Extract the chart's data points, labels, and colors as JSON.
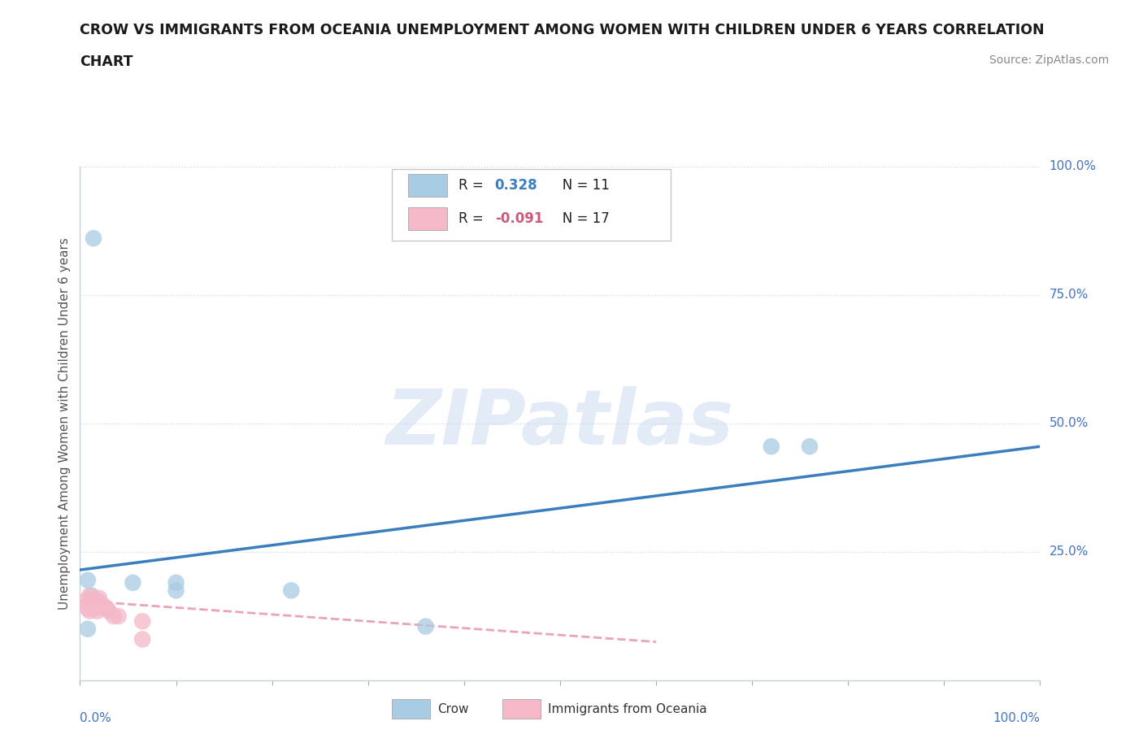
{
  "title_line1": "CROW VS IMMIGRANTS FROM OCEANIA UNEMPLOYMENT AMONG WOMEN WITH CHILDREN UNDER 6 YEARS CORRELATION",
  "title_line2": "CHART",
  "source_text": "Source: ZipAtlas.com",
  "ylabel": "Unemployment Among Women with Children Under 6 years",
  "crow_R": 0.328,
  "crow_N": 11,
  "immigrants_R": -0.091,
  "immigrants_N": 17,
  "crow_color": "#a8cce4",
  "immigrants_color": "#f4b8c8",
  "crow_line_color": "#3a7ebf",
  "immigrants_line_color": "#e899b0",
  "crow_points": [
    [
      0.014,
      0.86
    ],
    [
      0.008,
      0.195
    ],
    [
      0.012,
      0.165
    ],
    [
      0.055,
      0.19
    ],
    [
      0.1,
      0.175
    ],
    [
      0.1,
      0.19
    ],
    [
      0.22,
      0.175
    ],
    [
      0.36,
      0.105
    ],
    [
      0.72,
      0.455
    ],
    [
      0.76,
      0.455
    ],
    [
      0.008,
      0.1
    ]
  ],
  "immigrants_points": [
    [
      0.006,
      0.155
    ],
    [
      0.008,
      0.14
    ],
    [
      0.01,
      0.165
    ],
    [
      0.01,
      0.135
    ],
    [
      0.012,
      0.155
    ],
    [
      0.016,
      0.14
    ],
    [
      0.018,
      0.155
    ],
    [
      0.018,
      0.135
    ],
    [
      0.02,
      0.16
    ],
    [
      0.022,
      0.145
    ],
    [
      0.025,
      0.145
    ],
    [
      0.028,
      0.14
    ],
    [
      0.03,
      0.135
    ],
    [
      0.035,
      0.125
    ],
    [
      0.04,
      0.125
    ],
    [
      0.065,
      0.115
    ],
    [
      0.065,
      0.08
    ]
  ],
  "crow_line_x": [
    0.0,
    1.0
  ],
  "crow_line_y": [
    0.215,
    0.455
  ],
  "immigrants_line_x": [
    0.0,
    0.6
  ],
  "immigrants_line_y": [
    0.155,
    0.075
  ],
  "ytick_positions": [
    0.0,
    0.25,
    0.5,
    0.75,
    1.0
  ],
  "ytick_labels": [
    "",
    "25.0%",
    "50.0%",
    "75.0%",
    "100.0%"
  ],
  "xtick_label_left": "0.0%",
  "xtick_label_right": "100.0%",
  "xlim": [
    0.0,
    1.0
  ],
  "ylim": [
    0.0,
    1.0
  ],
  "watermark_text": "ZIPatlas",
  "background_color": "#ffffff",
  "grid_color": "#d0d8e8",
  "title_color": "#1a1a1a",
  "ylabel_color": "#555555",
  "tick_color": "#4472c4",
  "source_color": "#888888",
  "legend_label1": "Crow",
  "legend_label2": "Immigrants from Oceania"
}
